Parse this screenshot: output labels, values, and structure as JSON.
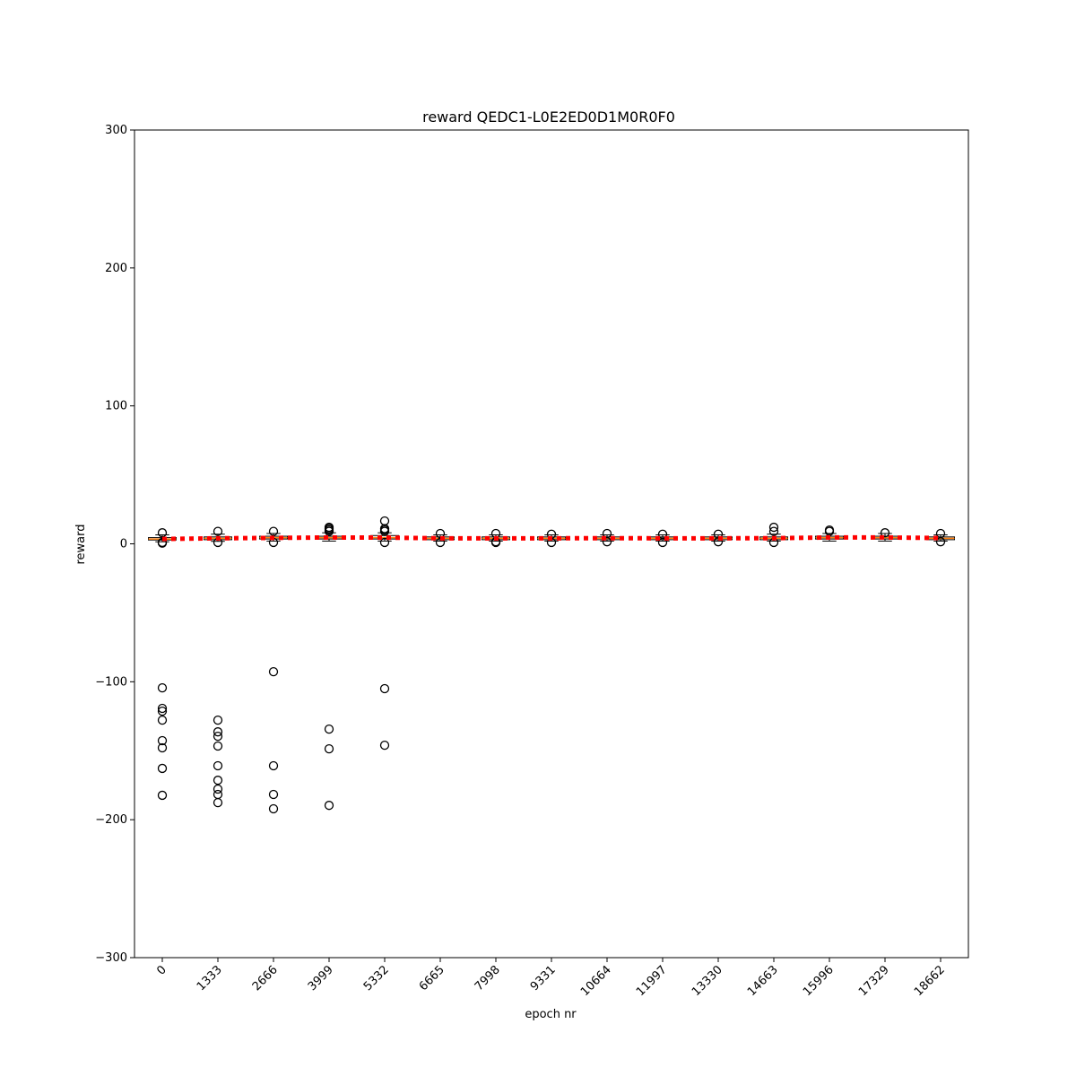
{
  "chart_data": {
    "type": "box",
    "title": "reward QEDC1-L0E2ED0D1M0R0F0",
    "x_label": "epoch nr",
    "y_label": "reward",
    "categories": [
      "0",
      "1333",
      "2666",
      "3999",
      "5332",
      "6665",
      "7998",
      "9331",
      "10664",
      "11997",
      "13330",
      "14663",
      "15996",
      "17329",
      "18662"
    ],
    "boxes": [
      {
        "whislo": 1.5,
        "q1": 2.8,
        "med": 3.5,
        "q3": 4.5,
        "whishi": 6.5,
        "outliers": [
          0.5,
          1,
          8,
          -104.4,
          -119.3,
          -121.3,
          -127.8,
          -142.7,
          -147.9,
          -162.8,
          -182.3
        ]
      },
      {
        "whislo": 1.8,
        "q1": 3,
        "med": 4,
        "q3": 5,
        "whishi": 7,
        "outliers": [
          1,
          9,
          -127.8,
          -136.3,
          -139.5,
          -146.6,
          -160.9,
          -171.4,
          -177.8,
          -181.7,
          -187.6
        ]
      },
      {
        "whislo": 2,
        "q1": 3.5,
        "med": 4.5,
        "q3": 5.5,
        "whishi": 7.5,
        "outliers": [
          1,
          9,
          -92.7,
          -160.9,
          -181.7,
          -192.1
        ]
      },
      {
        "whislo": 2,
        "q1": 3.5,
        "med": 4.5,
        "q3": 5.5,
        "whishi": 8,
        "outliers": [
          9,
          10,
          11,
          12,
          -134.3,
          -148.6,
          -189.6
        ]
      },
      {
        "whislo": 2,
        "q1": 3.5,
        "med": 4.5,
        "q3": 6,
        "whishi": 8,
        "outliers": [
          1,
          9,
          10,
          11,
          16.6,
          -105,
          -146
        ]
      },
      {
        "whislo": 2,
        "q1": 3,
        "med": 4,
        "q3": 5,
        "whishi": 6.5,
        "outliers": [
          1,
          7.5
        ]
      },
      {
        "whislo": 2,
        "q1": 3,
        "med": 4,
        "q3": 5,
        "whishi": 6.5,
        "outliers": [
          1,
          1.5,
          7.5
        ]
      },
      {
        "whislo": 2,
        "q1": 3,
        "med": 4,
        "q3": 5,
        "whishi": 6.5,
        "outliers": [
          1,
          7
        ]
      },
      {
        "whislo": 2,
        "q1": 3,
        "med": 4,
        "q3": 5,
        "whishi": 6.5,
        "outliers": [
          1.5,
          7.5
        ]
      },
      {
        "whislo": 2,
        "q1": 3,
        "med": 4,
        "q3": 5,
        "whishi": 6.5,
        "outliers": [
          1,
          7
        ]
      },
      {
        "whislo": 2,
        "q1": 3,
        "med": 4,
        "q3": 5,
        "whishi": 6.5,
        "outliers": [
          1.5,
          7
        ]
      },
      {
        "whislo": 2,
        "q1": 3,
        "med": 4,
        "q3": 5,
        "whishi": 7,
        "outliers": [
          1,
          9,
          12
        ]
      },
      {
        "whislo": 2,
        "q1": 3.5,
        "med": 4.5,
        "q3": 5.5,
        "whishi": 7.5,
        "outliers": [
          9,
          10
        ]
      },
      {
        "whislo": 2,
        "q1": 3.5,
        "med": 4.5,
        "q3": 5.5,
        "whishi": 7.5,
        "outliers": [
          8
        ]
      },
      {
        "whislo": 2,
        "q1": 3,
        "med": 4,
        "q3": 5,
        "whishi": 6.5,
        "outliers": [
          1.5,
          7.5
        ]
      }
    ],
    "means": [
      3.5,
      4,
      4.3,
      4.6,
      4.5,
      4,
      4,
      4,
      4.1,
      4,
      4,
      4.1,
      4.6,
      4.6,
      4.2
    ],
    "box_color": "#000000",
    "median_color": "#ff7f0e",
    "mean_color": "#ff0000",
    "ylim": [
      -300,
      300
    ],
    "yticks": [
      {
        "value": -300,
        "label": "−300"
      },
      {
        "value": -200,
        "label": "−200"
      },
      {
        "value": -100,
        "label": "−100"
      },
      0,
      100,
      200,
      300
    ],
    "grid": false
  }
}
